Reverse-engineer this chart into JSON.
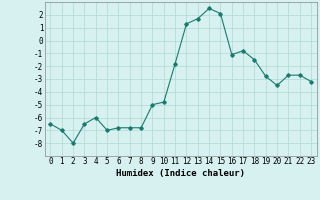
{
  "x": [
    0,
    1,
    2,
    3,
    4,
    5,
    6,
    7,
    8,
    9,
    10,
    11,
    12,
    13,
    14,
    15,
    16,
    17,
    18,
    19,
    20,
    21,
    22,
    23
  ],
  "y": [
    -6.5,
    -7.0,
    -8.0,
    -6.5,
    -6.0,
    -7.0,
    -6.8,
    -6.8,
    -6.8,
    -5.0,
    -4.8,
    -1.8,
    1.3,
    1.7,
    2.5,
    2.1,
    -1.1,
    -0.8,
    -1.5,
    -2.8,
    -3.5,
    -2.7,
    -2.7,
    -3.2
  ],
  "line_color": "#1a7a6e",
  "marker": "D",
  "markersize": 1.8,
  "linewidth": 0.8,
  "bg_color": "#d7f0f0",
  "grid_color": "#b0d8d8",
  "xlabel": "Humidex (Indice chaleur)",
  "xlim": [
    -0.5,
    23.5
  ],
  "ylim": [
    -9,
    3
  ],
  "yticks": [
    2,
    1,
    0,
    -1,
    -2,
    -3,
    -4,
    -5,
    -6,
    -7,
    -8
  ],
  "xtick_labels": [
    "0",
    "1",
    "2",
    "3",
    "4",
    "5",
    "6",
    "7",
    "8",
    "9",
    "10",
    "11",
    "12",
    "13",
    "14",
    "15",
    "16",
    "17",
    "18",
    "19",
    "20",
    "21",
    "22",
    "23"
  ],
  "tick_fontsize": 5.5,
  "xlabel_fontsize": 6.5
}
